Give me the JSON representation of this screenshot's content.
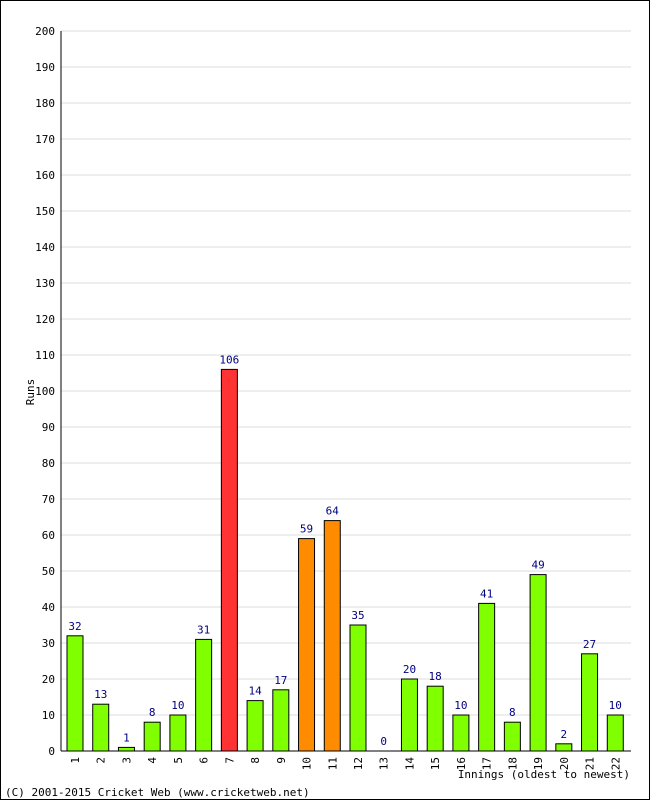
{
  "chart_data": {
    "type": "bar",
    "xlabel": "Innings (oldest to newest)",
    "ylabel": "Runs",
    "ylim": [
      0,
      200
    ],
    "ytick_step": 10,
    "grid": true,
    "categories": [
      "1",
      "2",
      "3",
      "4",
      "5",
      "6",
      "7",
      "8",
      "9",
      "10",
      "11",
      "12",
      "13",
      "14",
      "15",
      "16",
      "17",
      "18",
      "19",
      "20",
      "21",
      "22"
    ],
    "values": [
      32,
      13,
      1,
      8,
      10,
      31,
      106,
      14,
      17,
      59,
      64,
      35,
      0,
      20,
      18,
      10,
      41,
      8,
      49,
      2,
      27,
      10
    ],
    "colors": {
      "default": "#80ff00",
      "fifty": "#ff8c00",
      "hundred": "#ff3333",
      "data_label": "#000080"
    }
  },
  "footer": {
    "copyright": "(C) 2001-2015 Cricket Web (www.cricketweb.net)"
  }
}
